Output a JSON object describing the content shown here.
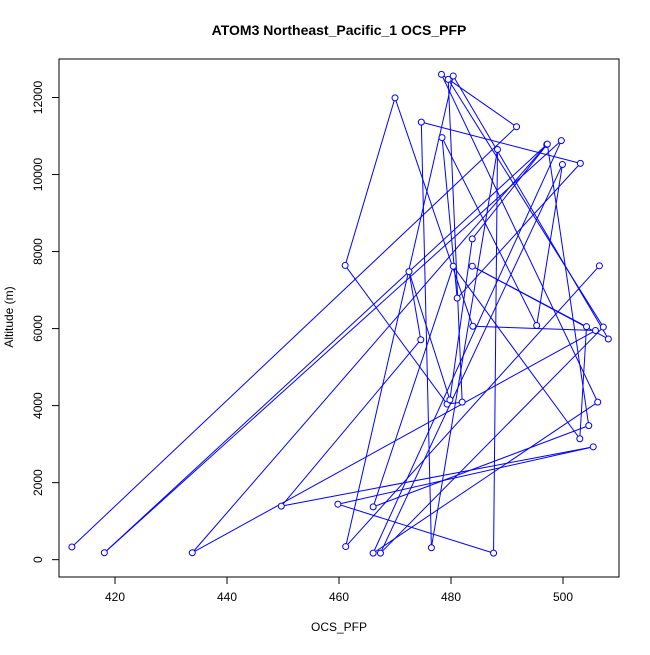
{
  "chart_data": {
    "type": "line",
    "title": "ATOM3 Northeast_Pacific_1 OCS_PFP",
    "xlabel": "OCS_PFP",
    "ylabel": "Altitude (m)",
    "xlim": [
      410,
      510
    ],
    "ylim": [
      -450,
      13000
    ],
    "xticks": [
      420,
      440,
      460,
      480,
      500
    ],
    "yticks": [
      0,
      2000,
      4000,
      6000,
      8000,
      10000,
      12000
    ],
    "grid": false,
    "line_color": "#0000ff",
    "marker": "open-circle",
    "series": [
      {
        "x": [
          412.3,
          491.7,
          478.3,
          506.2,
          466.1,
          499.7,
          418.1,
          497.1,
          433.8,
          505.8,
          483.9,
          470.0,
          461.1,
          479.3,
          482.0,
          479.5,
          507.2,
          467.4,
          499.9,
          495.3,
          478.4,
          481.1,
          503.1,
          474.7,
          476.5,
          488.3,
          487.6,
          459.8,
          505.4,
          449.7,
          474.6,
          472.5,
          479.8,
          483.8,
          497.2,
          504.6,
          466.1,
          480.4,
          503.0,
          504.2,
          483.8,
          508.1,
          480.4,
          461.2,
          506.5
        ],
        "y": [
          330,
          11240,
          12600,
          4090,
          170,
          10880,
          180,
          10780,
          180,
          5950,
          6060,
          11990,
          7640,
          4040,
          4090,
          12470,
          6040,
          170,
          10260,
          6080,
          10960,
          6790,
          10290,
          11360,
          310,
          10650,
          170,
          1440,
          2930,
          1390,
          5710,
          7480,
          4150,
          8330,
          10790,
          3480,
          1370,
          7620,
          3140,
          6050,
          7620,
          5730,
          12560,
          340,
          7630
        ]
      }
    ]
  }
}
